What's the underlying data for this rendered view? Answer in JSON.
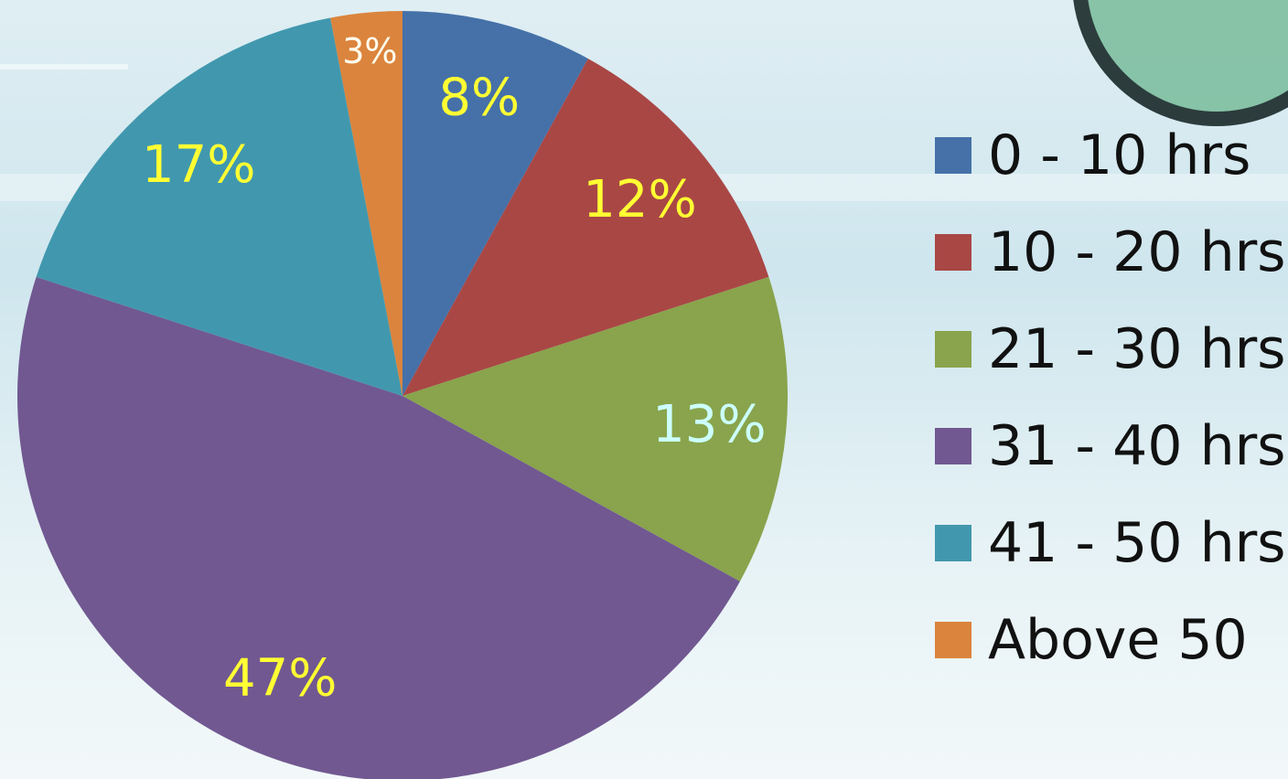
{
  "chart_data": {
    "type": "pie",
    "categories": [
      "0 - 10 hrs",
      "10 - 20 hrs",
      "21 - 30 hrs",
      "31 - 40 hrs",
      "41 - 50 hrs",
      "Above 50"
    ],
    "values": [
      8,
      12,
      13,
      47,
      17,
      3
    ],
    "value_labels": [
      "8%",
      "12%",
      "13%",
      "47%",
      "17%",
      "3%"
    ],
    "colors": [
      "#4571a8",
      "#a94745",
      "#89a44c",
      "#715891",
      "#4198ae",
      "#db843d"
    ],
    "label_colors": [
      "#ffff33",
      "#ffff33",
      "#ccffff",
      "#ffff33",
      "#ffff33",
      "#ffffee"
    ],
    "legend": "right"
  }
}
